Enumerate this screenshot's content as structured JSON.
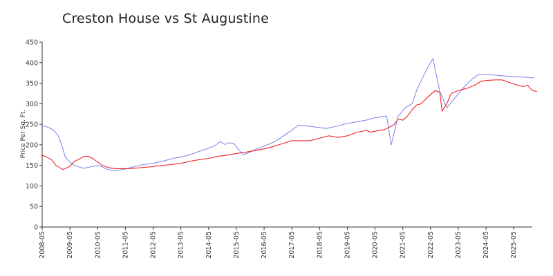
{
  "chart_data": {
    "type": "line",
    "title": "Creston House vs St Augustine",
    "xlabel": "",
    "ylabel": "Price Per Sq. Ft.",
    "ylim": [
      0,
      450
    ],
    "yticks": [
      0,
      50,
      100,
      150,
      200,
      250,
      300,
      350,
      400,
      450
    ],
    "xlim": [
      "2008-05",
      "2025-11"
    ],
    "xticks": [
      "2008-05",
      "2009-05",
      "2010-05",
      "2011-05",
      "2012-05",
      "2013-05",
      "2014-05",
      "2015-05",
      "2016-05",
      "2017-05",
      "2018-05",
      "2019-05",
      "2020-05",
      "2021-05",
      "2022-05",
      "2023-05",
      "2024-05",
      "2025-05"
    ],
    "grid": false,
    "legend": "none",
    "series": [
      {
        "color": "#8888ee",
        "points": [
          [
            "2008-05",
            247
          ],
          [
            "2008-08",
            242
          ],
          [
            "2008-10",
            235
          ],
          [
            "2008-12",
            222
          ],
          [
            "2009-02",
            190
          ],
          [
            "2009-03",
            170
          ],
          [
            "2009-05",
            158
          ],
          [
            "2009-07",
            150
          ],
          [
            "2009-09",
            146
          ],
          [
            "2009-11",
            143
          ],
          [
            "2010-01",
            145
          ],
          [
            "2010-03",
            148
          ],
          [
            "2010-05",
            150
          ],
          [
            "2010-07",
            146
          ],
          [
            "2010-09",
            141
          ],
          [
            "2010-11",
            138
          ],
          [
            "2011-01",
            137
          ],
          [
            "2011-03",
            139
          ],
          [
            "2011-05",
            141
          ],
          [
            "2011-07",
            144
          ],
          [
            "2011-09",
            147
          ],
          [
            "2011-11",
            150
          ],
          [
            "2012-01",
            152
          ],
          [
            "2012-05",
            155
          ],
          [
            "2012-09",
            160
          ],
          [
            "2013-01",
            166
          ],
          [
            "2013-03",
            169
          ],
          [
            "2013-05",
            170
          ],
          [
            "2013-09",
            176
          ],
          [
            "2014-01",
            184
          ],
          [
            "2014-05",
            192
          ],
          [
            "2014-08",
            199
          ],
          [
            "2014-10",
            208
          ],
          [
            "2014-12",
            201
          ],
          [
            "2015-02",
            205
          ],
          [
            "2015-04",
            203
          ],
          [
            "2015-06",
            188
          ],
          [
            "2015-08",
            176
          ],
          [
            "2015-10",
            180
          ],
          [
            "2016-01",
            188
          ],
          [
            "2016-05",
            197
          ],
          [
            "2016-09",
            206
          ],
          [
            "2017-01",
            220
          ],
          [
            "2017-05",
            236
          ],
          [
            "2017-08",
            248
          ],
          [
            "2018-01",
            245
          ],
          [
            "2018-05",
            242
          ],
          [
            "2018-08",
            240
          ],
          [
            "2019-01",
            246
          ],
          [
            "2019-05",
            252
          ],
          [
            "2020-01",
            260
          ],
          [
            "2020-05",
            266
          ],
          [
            "2020-10",
            270
          ],
          [
            "2020-12",
            200
          ],
          [
            "2021-03",
            270
          ],
          [
            "2021-06",
            290
          ],
          [
            "2021-09",
            300
          ],
          [
            "2021-11",
            333
          ],
          [
            "2022-03",
            380
          ],
          [
            "2022-06",
            410
          ],
          [
            "2022-09",
            330
          ],
          [
            "2022-12",
            290
          ],
          [
            "2023-03",
            310
          ],
          [
            "2023-07",
            338
          ],
          [
            "2023-11",
            360
          ],
          [
            "2024-02",
            372
          ],
          [
            "2024-08",
            370
          ],
          [
            "2025-02",
            367
          ],
          [
            "2025-08",
            365
          ],
          [
            "2026-02",
            363
          ]
        ]
      },
      {
        "color": "#ee2222",
        "points": [
          [
            "2008-05",
            175
          ],
          [
            "2008-07",
            170
          ],
          [
            "2008-09",
            164
          ],
          [
            "2008-11",
            150
          ],
          [
            "2009-01",
            143
          ],
          [
            "2009-02",
            140
          ],
          [
            "2009-04",
            145
          ],
          [
            "2009-05",
            148
          ],
          [
            "2009-07",
            160
          ],
          [
            "2009-09",
            165
          ],
          [
            "2009-11",
            172
          ],
          [
            "2010-01",
            172
          ],
          [
            "2010-03",
            166
          ],
          [
            "2010-05",
            158
          ],
          [
            "2010-07",
            150
          ],
          [
            "2010-09",
            146
          ],
          [
            "2010-11",
            143
          ],
          [
            "2011-01",
            142
          ],
          [
            "2011-05",
            142
          ],
          [
            "2011-09",
            143
          ],
          [
            "2012-01",
            145
          ],
          [
            "2012-05",
            147
          ],
          [
            "2012-09",
            150
          ],
          [
            "2013-01",
            152
          ],
          [
            "2013-05",
            155
          ],
          [
            "2013-09",
            160
          ],
          [
            "2014-01",
            164
          ],
          [
            "2014-05",
            167
          ],
          [
            "2014-09",
            172
          ],
          [
            "2015-01",
            175
          ],
          [
            "2015-05",
            179
          ],
          [
            "2015-09",
            182
          ],
          [
            "2016-01",
            186
          ],
          [
            "2016-05",
            190
          ],
          [
            "2016-09",
            196
          ],
          [
            "2017-01",
            203
          ],
          [
            "2017-05",
            210
          ],
          [
            "2017-09",
            210
          ],
          [
            "2018-01",
            210
          ],
          [
            "2018-05",
            216
          ],
          [
            "2018-09",
            222
          ],
          [
            "2019-01",
            218
          ],
          [
            "2019-05",
            222
          ],
          [
            "2019-09",
            230
          ],
          [
            "2020-01",
            235
          ],
          [
            "2020-03",
            231
          ],
          [
            "2020-05",
            233
          ],
          [
            "2020-09",
            237
          ],
          [
            "2021-01",
            248
          ],
          [
            "2021-03",
            263
          ],
          [
            "2021-05",
            260
          ],
          [
            "2021-07",
            270
          ],
          [
            "2021-09",
            285
          ],
          [
            "2021-11",
            297
          ],
          [
            "2022-01",
            300
          ],
          [
            "2022-03",
            312
          ],
          [
            "2022-05",
            322
          ],
          [
            "2022-07",
            332
          ],
          [
            "2022-09",
            328
          ],
          [
            "2022-10",
            282
          ],
          [
            "2022-12",
            300
          ],
          [
            "2023-02",
            325
          ],
          [
            "2023-05",
            332
          ],
          [
            "2023-09",
            338
          ],
          [
            "2023-12",
            345
          ],
          [
            "2024-03",
            355
          ],
          [
            "2024-06",
            357
          ],
          [
            "2024-09",
            358
          ],
          [
            "2024-12",
            358
          ],
          [
            "2025-03",
            352
          ],
          [
            "2025-06",
            346
          ],
          [
            "2025-09",
            342
          ],
          [
            "2025-11",
            345
          ],
          [
            "2026-01",
            332
          ],
          [
            "2026-03",
            330
          ]
        ]
      }
    ]
  }
}
